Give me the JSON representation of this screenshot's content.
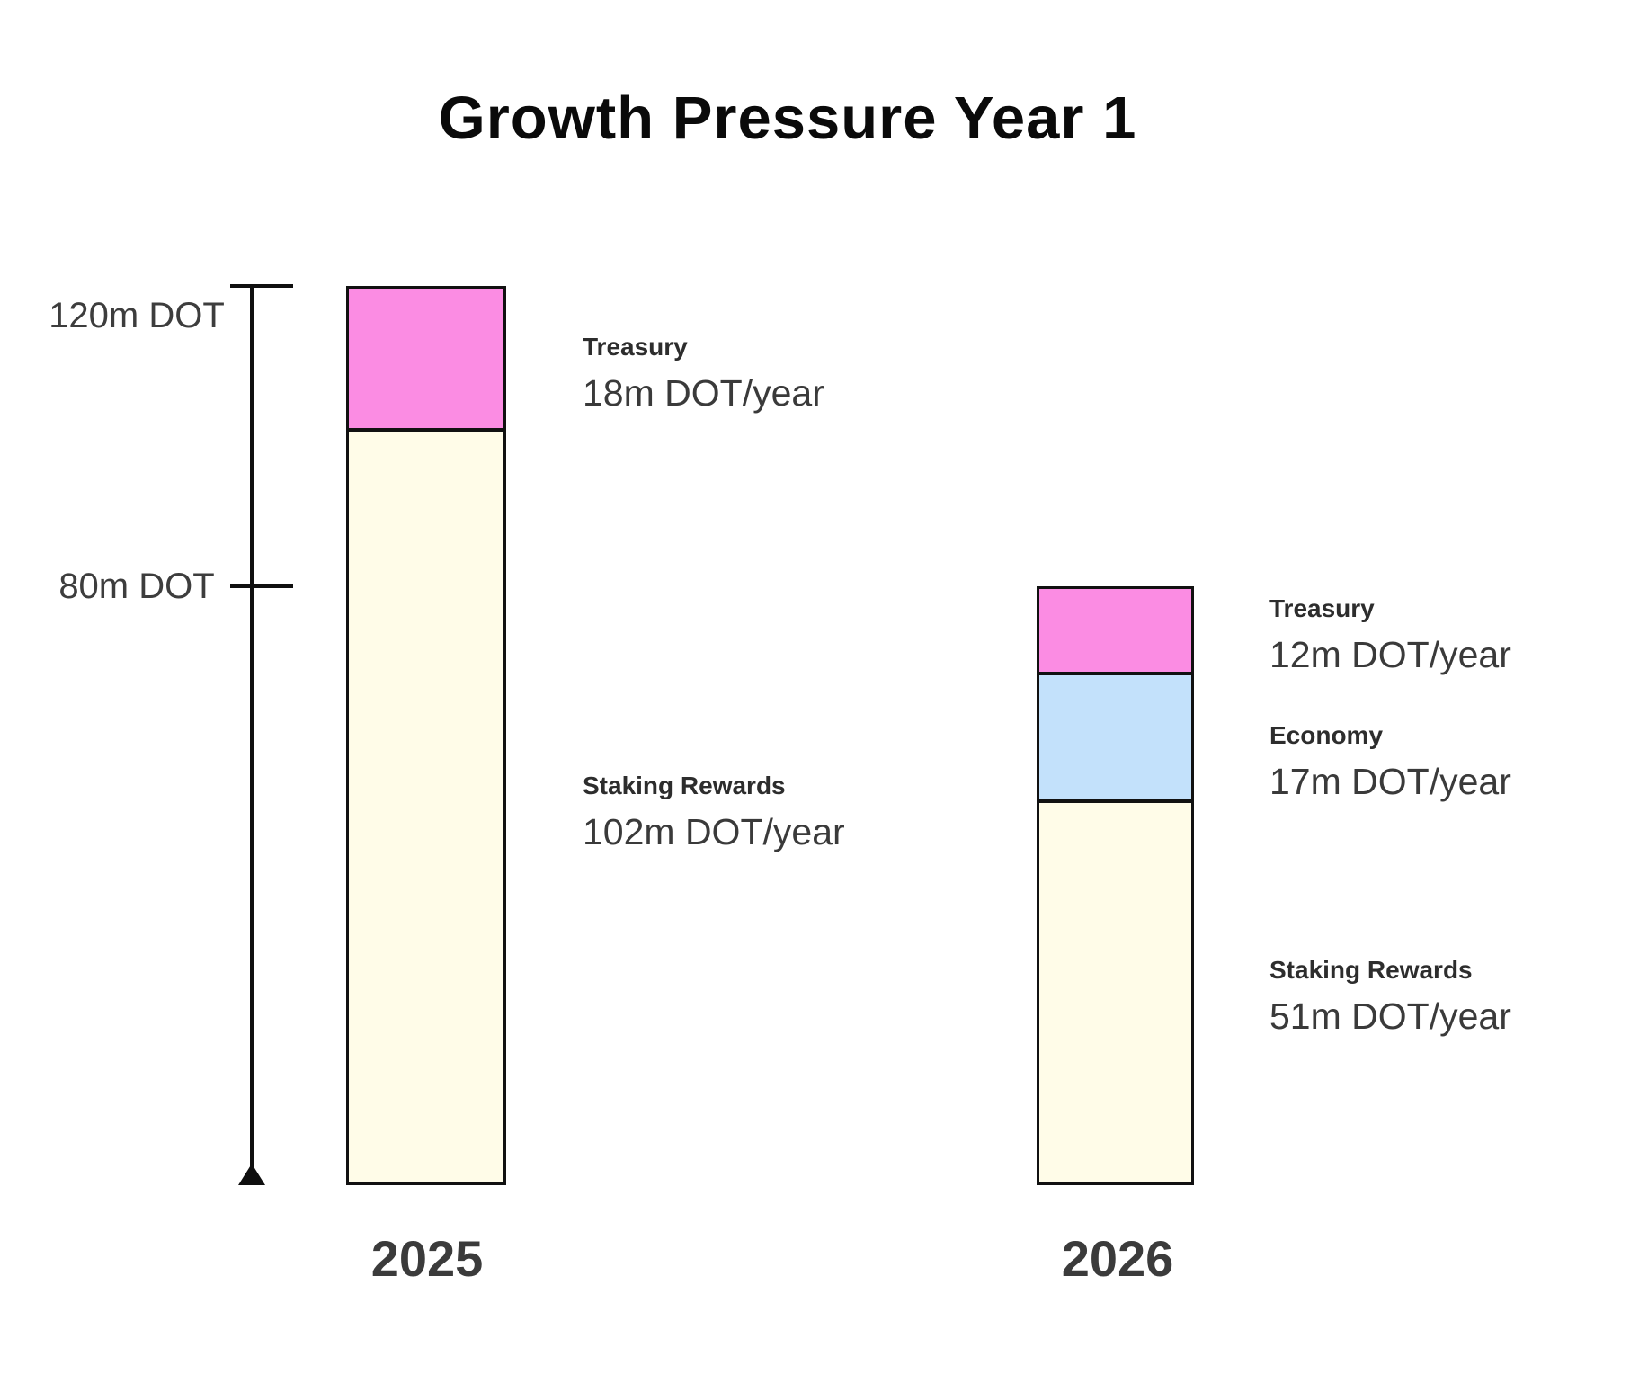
{
  "title": "Growth Pressure Year 1",
  "axis": {
    "tick_labels": [
      "120m DOT",
      "80m DOT"
    ],
    "arrow_terminal": "triangle-at-bottom"
  },
  "colors": {
    "treasury": "#FB8CE3",
    "economy": "#C3E1FB",
    "staking_rewards": "#FFFCE8",
    "outline": "#111111",
    "background": "#FFFFFF",
    "text": "#3A3A3A",
    "title_text": "#0A0A0A"
  },
  "bars": [
    {
      "year": "2025",
      "annotations": [
        {
          "name": "Treasury",
          "value": "18m DOT/year"
        },
        {
          "name": "Staking Rewards",
          "value": "102m DOT/year"
        }
      ]
    },
    {
      "year": "2026",
      "annotations": [
        {
          "name": "Treasury",
          "value": "12m DOT/year"
        },
        {
          "name": "Economy",
          "value": "17m DOT/year"
        },
        {
          "name": "Staking Rewards",
          "value": "51m DOT/year"
        }
      ]
    }
  ],
  "chart_data": {
    "type": "bar",
    "stacked": true,
    "title": "Growth Pressure Year 1",
    "categories": [
      "2025",
      "2026"
    ],
    "value_unit": "m DOT/year",
    "series": [
      {
        "name": "Treasury",
        "values": [
          18,
          12
        ],
        "color": "#FB8CE3"
      },
      {
        "name": "Economy",
        "values": [
          0,
          17
        ],
        "color": "#C3E1FB"
      },
      {
        "name": "Staking Rewards",
        "values": [
          102,
          51
        ],
        "color": "#FFFCE8"
      }
    ],
    "totals": [
      120,
      80
    ],
    "ylim": [
      0,
      120
    ],
    "y_axis_ticks": [
      120,
      80
    ],
    "y_axis_tick_labels": [
      "120m DOT",
      "80m DOT"
    ],
    "grid": false,
    "legend_position": "inline-annotations-right-of-bars"
  }
}
